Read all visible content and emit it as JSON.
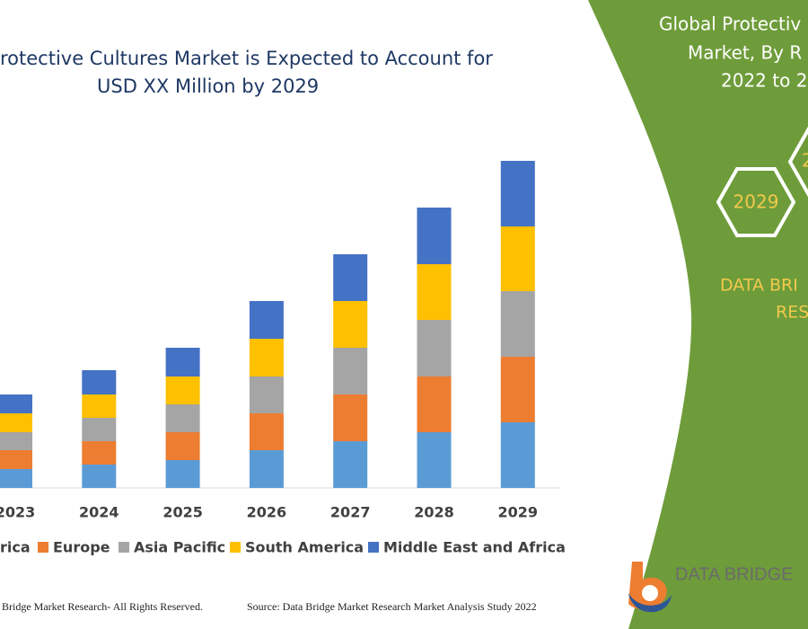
{
  "chart_data": {
    "type": "stacked-bar",
    "title_lines": [
      "rotective Cultures Market is Expected to Account for",
      "USD XX Million by 2029"
    ],
    "categories": [
      "2023",
      "2024",
      "2025",
      "2026",
      "2027",
      "2028",
      "2029"
    ],
    "series": [
      {
        "name": "rica",
        "color": "#5b9bd5",
        "values": [
          21,
          26,
          31,
          42,
          52,
          62,
          73
        ]
      },
      {
        "name": "Europe",
        "color": "#ed7d31",
        "values": [
          21,
          26,
          31,
          41,
          52,
          62,
          73
        ]
      },
      {
        "name": "Asia Pacific",
        "color": "#a5a5a5",
        "values": [
          20,
          26,
          31,
          41,
          52,
          63,
          73
        ]
      },
      {
        "name": "South America",
        "color": "#ffc000",
        "values": [
          21,
          26,
          31,
          42,
          52,
          62,
          72
        ]
      },
      {
        "name": "Middle East and Africa",
        "color": "#4472c4",
        "values": [
          21,
          27,
          32,
          42,
          52,
          63,
          73
        ]
      }
    ],
    "ylim": [
      0,
      380
    ]
  },
  "panel": {
    "heading_lines": [
      "Global Protectiv",
      "Market, By R",
      "2022 to 2"
    ],
    "hexagons": [
      "2029",
      "2"
    ],
    "brand_lines": [
      "DATA BRI",
      "RES"
    ],
    "logo": "DATA BRIDGE"
  },
  "footer": {
    "rights": "Bridge Market Research- All Rights Reserved.",
    "source": "Source: Data Bridge Market Research Market Analysis Study 2022"
  }
}
